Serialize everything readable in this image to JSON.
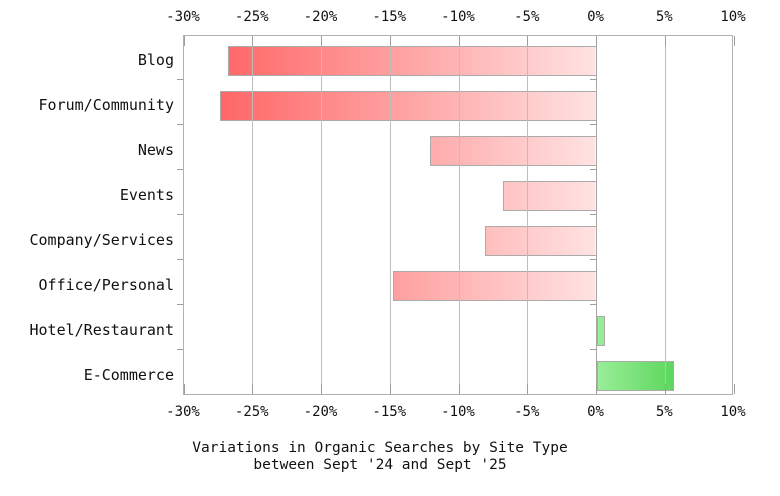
{
  "chart_data": {
    "type": "bar",
    "orientation": "horizontal",
    "title": "Variations in Organic Searches by Site Type between Sept '24 and Sept '25",
    "title_lines": [
      "Variations in Organic Searches by Site Type",
      "between Sept '24 and Sept '25"
    ],
    "categories": [
      "Blog",
      "Forum/Community",
      "News",
      "Events",
      "Company/Services",
      "Office/Personal",
      "Hotel/Restaurant",
      "E-Commerce"
    ],
    "values": [
      -26.8,
      -27.4,
      -12.1,
      -6.8,
      -8.1,
      -14.8,
      0.6,
      5.6
    ],
    "unit": "%",
    "xlabel": "",
    "ylabel": "",
    "xlim": [
      -30,
      10
    ],
    "x_tick_values": [
      -30,
      -25,
      -20,
      -15,
      -10,
      -5,
      0,
      5,
      10
    ],
    "x_tick_labels": [
      "-30%",
      "-25%",
      "-20%",
      "-15%",
      "-10%",
      "-5%",
      "0%",
      "5%",
      "10%"
    ],
    "x_axis_positions": [
      "top",
      "bottom"
    ],
    "grid": true,
    "legend": false,
    "colors": {
      "negative_gradient_start": "#ff5a5a",
      "negative_gradient_end": "#ffe2e2",
      "positive_gradient_start": "#98ee98",
      "positive_gradient_end": "#2dc32d",
      "bar_border": "#ababab",
      "gridline": "#bdbdbd",
      "zero_line": "#a6a6a6",
      "plot_border": "#b0b0b0",
      "tick": "#9e9e9e",
      "text": "#111111"
    }
  }
}
